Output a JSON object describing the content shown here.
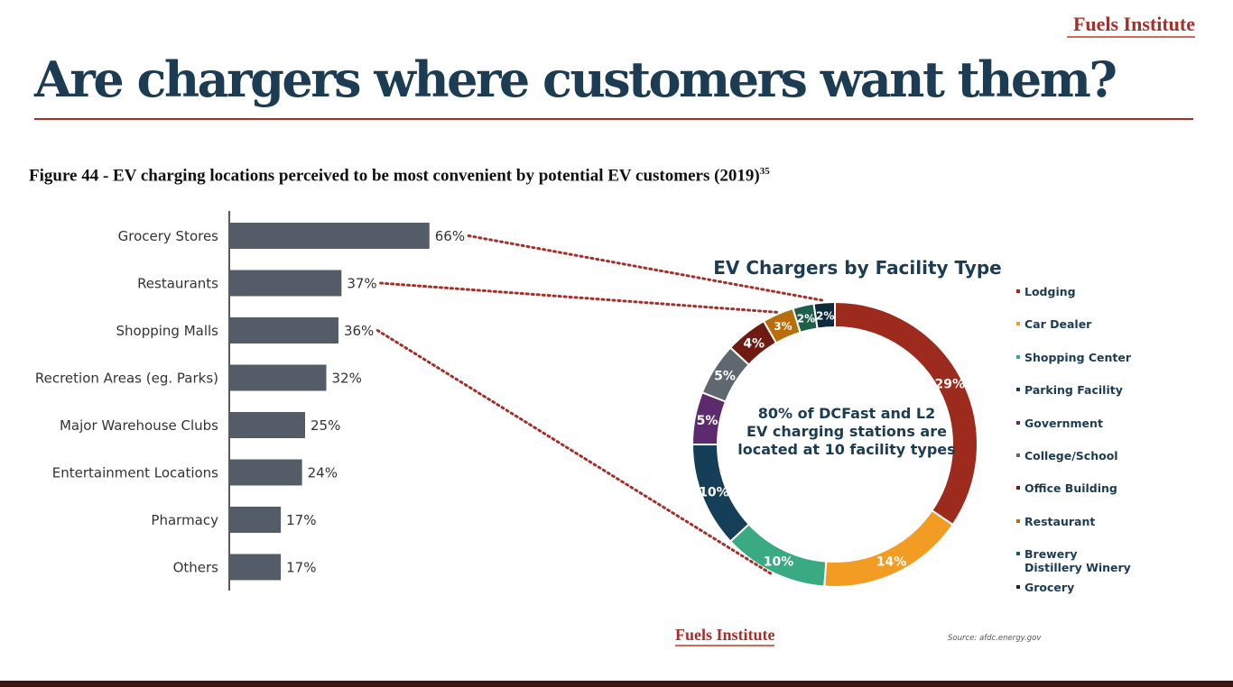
{
  "brand": "Fuels Institute",
  "title": "Are chargers where customers want them?",
  "figure_caption": "Figure 44 - EV charging locations perceived to be most convenient by potential EV customers (2019)",
  "figure_caption_ref": "35",
  "source": "Source: afdc.energy.gov",
  "colors": {
    "title": "#1c3c54",
    "accent": "#a3302a",
    "bar": "#545d67",
    "connector": "#a3302a"
  },
  "chart_data": [
    {
      "type": "bar",
      "orientation": "horizontal",
      "categories": [
        "Grocery Stores",
        "Restaurants",
        "Shopping Malls",
        "Recretion Areas (eg. Parks)",
        "Major Warehouse Clubs",
        "Entertainment Locations",
        "Pharmacy",
        "Others"
      ],
      "values": [
        66,
        37,
        36,
        32,
        25,
        24,
        17,
        17
      ],
      "value_labels": [
        "66%",
        "37%",
        "36%",
        "32%",
        "25%",
        "24%",
        "17%",
        "17%"
      ]
    },
    {
      "type": "pie",
      "donut": true,
      "title": "EV Chargers by Facility Type",
      "center_text": [
        "80% of DCFast and L2",
        "EV charging stations are",
        "located at 10 facility types"
      ],
      "legend_position": "right",
      "slices": [
        {
          "name": "Lodging",
          "value": 29,
          "label": "29%",
          "color": "#9c2b1e"
        },
        {
          "name": "Car Dealer",
          "value": 14,
          "label": "14%",
          "color": "#f29c24"
        },
        {
          "name": "Shopping Center",
          "value": 10,
          "label": "10%",
          "color": "#3aaa83"
        },
        {
          "name": "Parking Facility",
          "value": 10,
          "label": "10%",
          "color": "#153f58"
        },
        {
          "name": "Government",
          "value": 5,
          "label": "5%",
          "color": "#5e2a6e"
        },
        {
          "name": "College/School",
          "value": 5,
          "label": "5%",
          "color": "#5f6770"
        },
        {
          "name": "Office Building",
          "value": 4,
          "label": "4%",
          "color": "#6e1c12"
        },
        {
          "name": "Restaurant",
          "value": 3,
          "label": "3%",
          "color": "#b86e0c"
        },
        {
          "name": "Brewery\nDistillery Winery",
          "value": 2,
          "label": "2%",
          "color": "#1f5e48"
        },
        {
          "name": "Grocery",
          "value": 2,
          "label": "2%",
          "color": "#0e2a3c"
        }
      ]
    }
  ]
}
